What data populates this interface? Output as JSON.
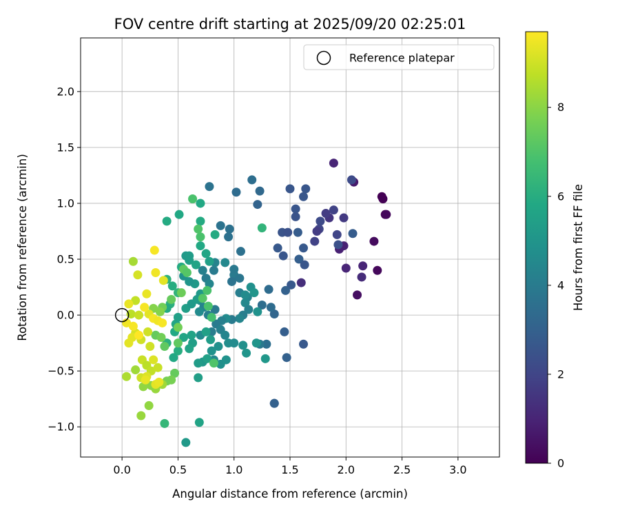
{
  "chart_data": {
    "type": "scatter",
    "title": "FOV centre drift starting at 2025/09/20 02:25:01",
    "xlabel": "Angular distance from reference (arcmin)",
    "ylabel": "Rotation from reference (arcmin)",
    "xlim": [
      -0.37,
      3.37
    ],
    "ylim": [
      -1.27,
      2.48
    ],
    "xticks": [
      "0.0",
      "0.5",
      "1.0",
      "1.5",
      "2.0",
      "2.5",
      "3.0"
    ],
    "xtick_values": [
      0,
      0.5,
      1.0,
      1.5,
      2.0,
      2.5,
      3.0
    ],
    "yticks": [
      "−1.0",
      "−0.5",
      "0.0",
      "0.5",
      "1.0",
      "1.5",
      "2.0"
    ],
    "ytick_values": [
      -1.0,
      -0.5,
      0.0,
      0.5,
      1.0,
      1.5,
      2.0
    ],
    "grid": true,
    "legend": {
      "position": "top-right",
      "label": "Reference platepar"
    },
    "reference_point": {
      "x": 0.0,
      "y": 0.0
    },
    "colorbar": {
      "label": "Hours from first FF file",
      "range": [
        0,
        9.7
      ],
      "ticks": [
        "0",
        "2",
        "4",
        "6",
        "8"
      ],
      "tick_values": [
        0,
        2,
        4,
        6,
        8
      ],
      "colormap": "viridis"
    },
    "points": [
      [
        2.35,
        0.9,
        0.0
      ],
      [
        2.32,
        1.06,
        0.0
      ],
      [
        2.33,
        1.04,
        0.0
      ],
      [
        2.36,
        0.9,
        0.2
      ],
      [
        2.28,
        0.4,
        0.2
      ],
      [
        2.25,
        0.66,
        0.3
      ],
      [
        2.1,
        0.18,
        0.4
      ],
      [
        2.07,
        1.19,
        0.7
      ],
      [
        1.89,
        1.36,
        1.0
      ],
      [
        2.05,
        1.21,
        2.2
      ],
      [
        1.98,
        0.62,
        0.9
      ],
      [
        1.94,
        0.59,
        0.9
      ],
      [
        2.0,
        0.42,
        1.0
      ],
      [
        2.15,
        0.44,
        1.0
      ],
      [
        2.14,
        0.34,
        1.2
      ],
      [
        1.6,
        0.29,
        1.3
      ],
      [
        1.85,
        0.87,
        1.5
      ],
      [
        1.82,
        0.91,
        1.7
      ],
      [
        1.89,
        0.94,
        1.9
      ],
      [
        1.77,
        0.84,
        2.2
      ],
      [
        1.76,
        0.77,
        2.0
      ],
      [
        1.72,
        0.66,
        1.9
      ],
      [
        1.74,
        0.75,
        1.7
      ],
      [
        1.92,
        0.72,
        2.0
      ],
      [
        1.93,
        0.63,
        2.4
      ],
      [
        1.98,
        0.87,
        1.6
      ],
      [
        2.06,
        0.73,
        2.8
      ],
      [
        1.62,
        0.6,
        2.7
      ],
      [
        1.62,
        1.06,
        2.6
      ],
      [
        1.64,
        1.13,
        2.6
      ],
      [
        1.5,
        1.13,
        2.6
      ],
      [
        1.55,
        0.95,
        2.6
      ],
      [
        1.55,
        0.88,
        2.5
      ],
      [
        1.43,
        0.74,
        2.5
      ],
      [
        1.48,
        0.74,
        2.4
      ],
      [
        1.57,
        0.74,
        2.8
      ],
      [
        1.44,
        0.53,
        2.6
      ],
      [
        1.39,
        0.6,
        2.7
      ],
      [
        1.58,
        0.5,
        2.9
      ],
      [
        1.63,
        0.45,
        2.6
      ],
      [
        1.51,
        0.27,
        2.7
      ],
      [
        1.46,
        0.22,
        3.0
      ],
      [
        1.45,
        -0.15,
        2.9
      ],
      [
        1.62,
        -0.26,
        2.7
      ],
      [
        1.47,
        -0.38,
        3.0
      ],
      [
        1.36,
        -0.79,
        2.6
      ],
      [
        1.36,
        -0.79,
        3.0
      ],
      [
        1.36,
        0.01,
        3.2
      ],
      [
        1.23,
        1.11,
        3.3
      ],
      [
        1.21,
        0.99,
        3.1
      ],
      [
        1.16,
        1.21,
        3.5
      ],
      [
        1.02,
        1.1,
        3.4
      ],
      [
        0.78,
        1.15,
        3.7
      ],
      [
        0.96,
        0.77,
        3.6
      ],
      [
        0.95,
        0.7,
        3.6
      ],
      [
        0.88,
        0.8,
        3.7
      ],
      [
        1.06,
        0.57,
        3.6
      ],
      [
        1.31,
        0.23,
        3.4
      ],
      [
        1.33,
        0.07,
        3.4
      ],
      [
        1.25,
        0.09,
        3.5
      ],
      [
        1.29,
        -0.26,
        3.5
      ],
      [
        1.23,
        -0.26,
        3.9
      ],
      [
        1.0,
        0.36,
        4.0
      ],
      [
        1.05,
        0.33,
        3.8
      ],
      [
        0.98,
        0.3,
        3.7
      ],
      [
        1.0,
        0.41,
        3.9
      ],
      [
        0.82,
        0.4,
        4.0
      ],
      [
        0.72,
        0.4,
        4.2
      ],
      [
        0.75,
        0.33,
        4.0
      ],
      [
        0.78,
        0.28,
        4.4
      ],
      [
        0.92,
        0.47,
        4.5
      ],
      [
        0.83,
        0.47,
        4.3
      ],
      [
        1.05,
        0.2,
        4.1
      ],
      [
        1.12,
        0.16,
        4.3
      ],
      [
        1.1,
        0.18,
        4.6
      ],
      [
        1.1,
        0.11,
        4.5
      ],
      [
        1.13,
        0.05,
        4.2
      ],
      [
        1.08,
        0.0,
        4.1
      ],
      [
        1.05,
        -0.03,
        4.4
      ],
      [
        0.98,
        -0.04,
        4.0
      ],
      [
        0.93,
        -0.03,
        4.6
      ],
      [
        0.89,
        -0.05,
        4.2
      ],
      [
        0.84,
        -0.08,
        4.0
      ],
      [
        0.83,
        0.05,
        3.9
      ],
      [
        0.77,
        0.0,
        4.1
      ],
      [
        0.73,
        0.07,
        4.3
      ],
      [
        0.7,
        0.13,
        4.4
      ],
      [
        0.69,
        0.03,
        4.6
      ],
      [
        0.7,
        -0.18,
        4.6
      ],
      [
        0.8,
        -0.15,
        4.1
      ],
      [
        0.88,
        -0.13,
        4.2
      ],
      [
        0.92,
        -0.18,
        4.4
      ],
      [
        0.95,
        -0.25,
        4.7
      ],
      [
        0.86,
        -0.28,
        4.8
      ],
      [
        0.8,
        -0.32,
        4.9
      ],
      [
        0.82,
        -0.4,
        4.5
      ],
      [
        0.88,
        -0.44,
        4.8
      ],
      [
        0.93,
        -0.4,
        4.9
      ],
      [
        1.0,
        -0.25,
        4.6
      ],
      [
        1.08,
        -0.27,
        4.8
      ],
      [
        1.11,
        -0.34,
        5.0
      ],
      [
        1.2,
        -0.25,
        5.0
      ],
      [
        1.21,
        0.03,
        4.9
      ],
      [
        1.15,
        0.25,
        4.8
      ],
      [
        1.18,
        0.2,
        5.0
      ],
      [
        1.28,
        -0.39,
        5.1
      ],
      [
        0.72,
        -0.42,
        5.1
      ],
      [
        0.68,
        -0.43,
        5.3
      ],
      [
        0.68,
        -0.56,
        5.4
      ],
      [
        0.57,
        -1.14,
        5.2
      ],
      [
        0.69,
        -0.96,
        5.6
      ],
      [
        0.76,
        -0.39,
        5.5
      ],
      [
        0.79,
        -0.22,
        5.3
      ],
      [
        0.75,
        -0.15,
        5.5
      ],
      [
        0.62,
        -0.18,
        5.6
      ],
      [
        0.63,
        -0.25,
        5.4
      ],
      [
        0.6,
        -0.3,
        5.6
      ],
      [
        0.55,
        -0.2,
        5.7
      ],
      [
        0.48,
        -0.08,
        5.7
      ],
      [
        0.5,
        -0.02,
        5.5
      ],
      [
        0.57,
        0.06,
        5.4
      ],
      [
        0.62,
        0.1,
        5.2
      ],
      [
        0.67,
        0.14,
        5.3
      ],
      [
        0.7,
        0.19,
        5.2
      ],
      [
        0.65,
        0.28,
        5.2
      ],
      [
        0.6,
        0.3,
        5.0
      ],
      [
        0.55,
        0.35,
        4.9
      ],
      [
        0.6,
        0.49,
        5.4
      ],
      [
        0.57,
        0.53,
        5.2
      ],
      [
        0.6,
        0.53,
        5.3
      ],
      [
        0.66,
        0.45,
        5.6
      ],
      [
        0.53,
        0.43,
        5.9
      ],
      [
        0.7,
        0.62,
        5.8
      ],
      [
        0.75,
        0.55,
        5.7
      ],
      [
        0.78,
        0.48,
        5.5
      ],
      [
        0.83,
        0.72,
        5.9
      ],
      [
        0.7,
        0.84,
        5.9
      ],
      [
        0.7,
        1.0,
        5.8
      ],
      [
        0.51,
        0.9,
        5.8
      ],
      [
        0.4,
        0.84,
        5.9
      ],
      [
        0.4,
        0.32,
        6.2
      ],
      [
        0.45,
        0.26,
        6.0
      ],
      [
        0.5,
        0.2,
        6.3
      ],
      [
        0.43,
        0.1,
        6.1
      ],
      [
        0.4,
        0.06,
        5.9
      ],
      [
        0.47,
        -0.15,
        5.8
      ],
      [
        0.5,
        -0.32,
        6.0
      ],
      [
        0.46,
        -0.38,
        5.8
      ],
      [
        0.4,
        -0.25,
        6.1
      ],
      [
        0.38,
        -0.97,
        6.4
      ],
      [
        1.25,
        0.78,
        6.3
      ],
      [
        0.63,
        1.04,
        6.9
      ],
      [
        0.7,
        0.7,
        6.9
      ],
      [
        0.68,
        0.77,
        7.0
      ],
      [
        0.76,
        0.22,
        6.9
      ],
      [
        0.72,
        0.15,
        7.1
      ],
      [
        0.77,
        0.08,
        6.9
      ],
      [
        0.8,
        -0.02,
        6.8
      ],
      [
        0.82,
        -0.43,
        7.0
      ],
      [
        0.55,
        0.41,
        7.3
      ],
      [
        0.58,
        0.38,
        7.1
      ],
      [
        0.53,
        0.2,
        7.5
      ],
      [
        0.44,
        0.14,
        7.4
      ],
      [
        0.36,
        0.07,
        7.6
      ],
      [
        0.34,
        0.03,
        7.9
      ],
      [
        0.28,
        0.06,
        7.9
      ],
      [
        0.3,
        -0.18,
        7.4
      ],
      [
        0.35,
        -0.2,
        7.6
      ],
      [
        0.38,
        -0.28,
        7.3
      ],
      [
        0.5,
        -0.11,
        7.6
      ],
      [
        0.5,
        -0.25,
        7.3
      ],
      [
        0.47,
        -0.52,
        7.4
      ],
      [
        0.44,
        -0.58,
        7.7
      ],
      [
        0.4,
        -0.59,
        7.7
      ],
      [
        0.36,
        -0.62,
        8.3
      ],
      [
        0.3,
        -0.66,
        8.2
      ],
      [
        0.26,
        -0.63,
        8.0
      ],
      [
        0.19,
        -0.64,
        8.1
      ],
      [
        0.24,
        -0.81,
        8.1
      ],
      [
        0.17,
        -0.9,
        8.2
      ],
      [
        0.12,
        -0.49,
        8.3
      ],
      [
        0.04,
        -0.55,
        8.5
      ],
      [
        0.08,
        0.01,
        8.7
      ],
      [
        0.12,
        0.13,
        8.8
      ],
      [
        0.1,
        0.48,
        8.4
      ],
      [
        0.15,
        0.0,
        8.9
      ],
      [
        0.18,
        -0.4,
        8.9
      ],
      [
        0.22,
        -0.45,
        8.7
      ],
      [
        0.26,
        -0.5,
        8.8
      ],
      [
        0.32,
        -0.47,
        8.9
      ],
      [
        0.25,
        -0.28,
        9.0
      ],
      [
        0.17,
        -0.22,
        9.0
      ],
      [
        0.12,
        -0.16,
        9.1
      ],
      [
        0.09,
        -0.2,
        9.3
      ],
      [
        0.06,
        -0.25,
        9.3
      ],
      [
        0.06,
        0.1,
        9.4
      ],
      [
        0.04,
        -0.07,
        9.5
      ],
      [
        0.17,
        -0.56,
        9.0
      ],
      [
        0.22,
        -0.55,
        9.2
      ],
      [
        0.21,
        -0.58,
        9.4
      ],
      [
        0.3,
        -0.62,
        9.3
      ],
      [
        0.33,
        -0.6,
        9.4
      ],
      [
        0.24,
        0.01,
        9.3
      ],
      [
        0.28,
        -0.03,
        9.6
      ],
      [
        0.32,
        -0.05,
        9.5
      ],
      [
        0.36,
        -0.07,
        9.6
      ],
      [
        0.37,
        0.31,
        9.3
      ],
      [
        0.3,
        0.38,
        9.5
      ],
      [
        0.22,
        0.19,
        9.4
      ],
      [
        0.2,
        0.07,
        9.6
      ],
      [
        0.14,
        0.36,
        9.1
      ],
      [
        0.23,
        -0.15,
        9.0
      ],
      [
        0.29,
        0.58,
        9.6
      ],
      [
        0.1,
        -0.1,
        9.6
      ],
      [
        0.15,
        -0.18,
        9.7
      ],
      [
        0.28,
        -0.4,
        9.2
      ]
    ]
  }
}
